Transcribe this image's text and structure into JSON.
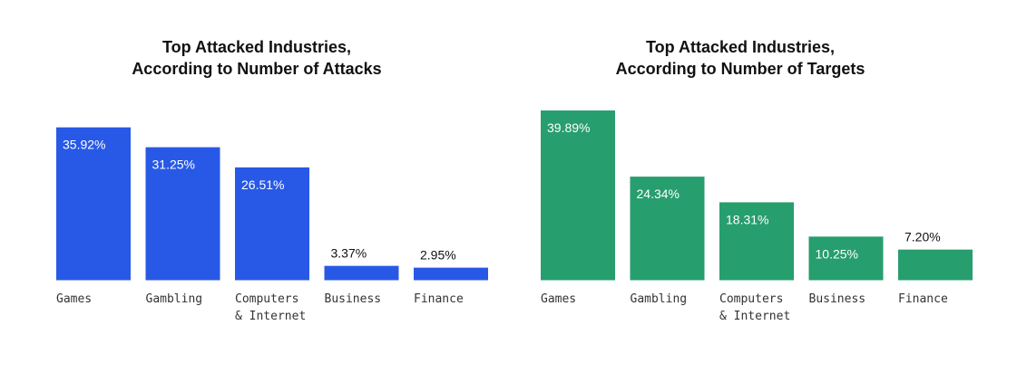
{
  "chart_data": [
    {
      "type": "bar",
      "title_lines": [
        "Top Attacked Industries,",
        "According to Number of Attacks"
      ],
      "categories": [
        [
          "Games"
        ],
        [
          "Gambling"
        ],
        [
          "Computers",
          "& Internet"
        ],
        [
          "Business"
        ],
        [
          "Finance"
        ]
      ],
      "values": [
        35.92,
        31.25,
        26.51,
        3.37,
        2.95
      ],
      "value_labels": [
        "35.92%",
        "31.25%",
        "26.51%",
        "3.37%",
        "2.95%"
      ],
      "bar_color": "#2859e6",
      "ylim": [
        0,
        40
      ],
      "grid": false,
      "xlabel": "",
      "ylabel": ""
    },
    {
      "type": "bar",
      "title_lines": [
        "Top Attacked Industries,",
        "According to Number of Targets"
      ],
      "categories": [
        [
          "Games"
        ],
        [
          "Gambling"
        ],
        [
          "Computers",
          "& Internet"
        ],
        [
          "Business"
        ],
        [
          "Finance"
        ]
      ],
      "values": [
        39.89,
        24.34,
        18.31,
        10.25,
        7.2
      ],
      "value_labels": [
        "39.89%",
        "24.34%",
        "18.31%",
        "10.25%",
        "7.20%"
      ],
      "bar_color": "#279e6e",
      "ylim": [
        0,
        40
      ],
      "grid": false,
      "xlabel": "",
      "ylabel": ""
    }
  ],
  "colors": {
    "label_inside": "#ffffff",
    "label_outside": "#111111",
    "category_text": "#333333"
  }
}
